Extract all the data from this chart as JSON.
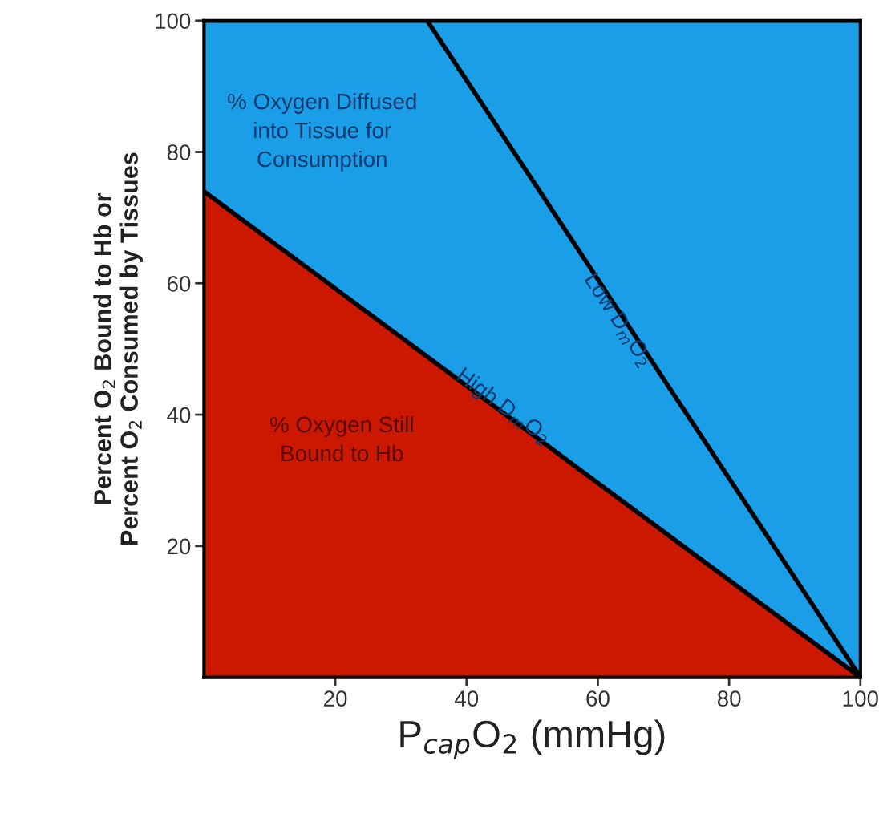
{
  "chart_data": {
    "type": "area",
    "xlabel": "P$_{cap}$O$_{2}$ (mmHg)",
    "ylabel": "Percent O$_{2}$ Bound to Hb or\nPercent O$_{2}$ Consumed by Tissues",
    "xlim": [
      0,
      100
    ],
    "ylim": [
      0,
      100
    ],
    "xticks": [
      20,
      40,
      60,
      80,
      100
    ],
    "yticks": [
      20,
      40,
      60,
      80,
      100
    ],
    "series": [
      {
        "name": "High D$_{m}$O$_{2}$",
        "color": "#cc1800",
        "x": [
          0,
          100
        ],
        "values": [
          74,
          0
        ]
      },
      {
        "color": "#1a9ee8",
        "x": [
          0,
          100
        ],
        "values": [
          26,
          100
        ]
      },
      {
        "name": "Low D$_{m}$O$_{2}$",
        "type": "line",
        "color": "#000000",
        "x": [
          34,
          100
        ],
        "values": [
          100,
          0
        ]
      }
    ],
    "annotations": [
      "% Oxygen Diffused\ninto Tissue for\nConsumption",
      "% Oxygen Still\nBound to Hb"
    ],
    "stacked": true,
    "grid": false
  }
}
